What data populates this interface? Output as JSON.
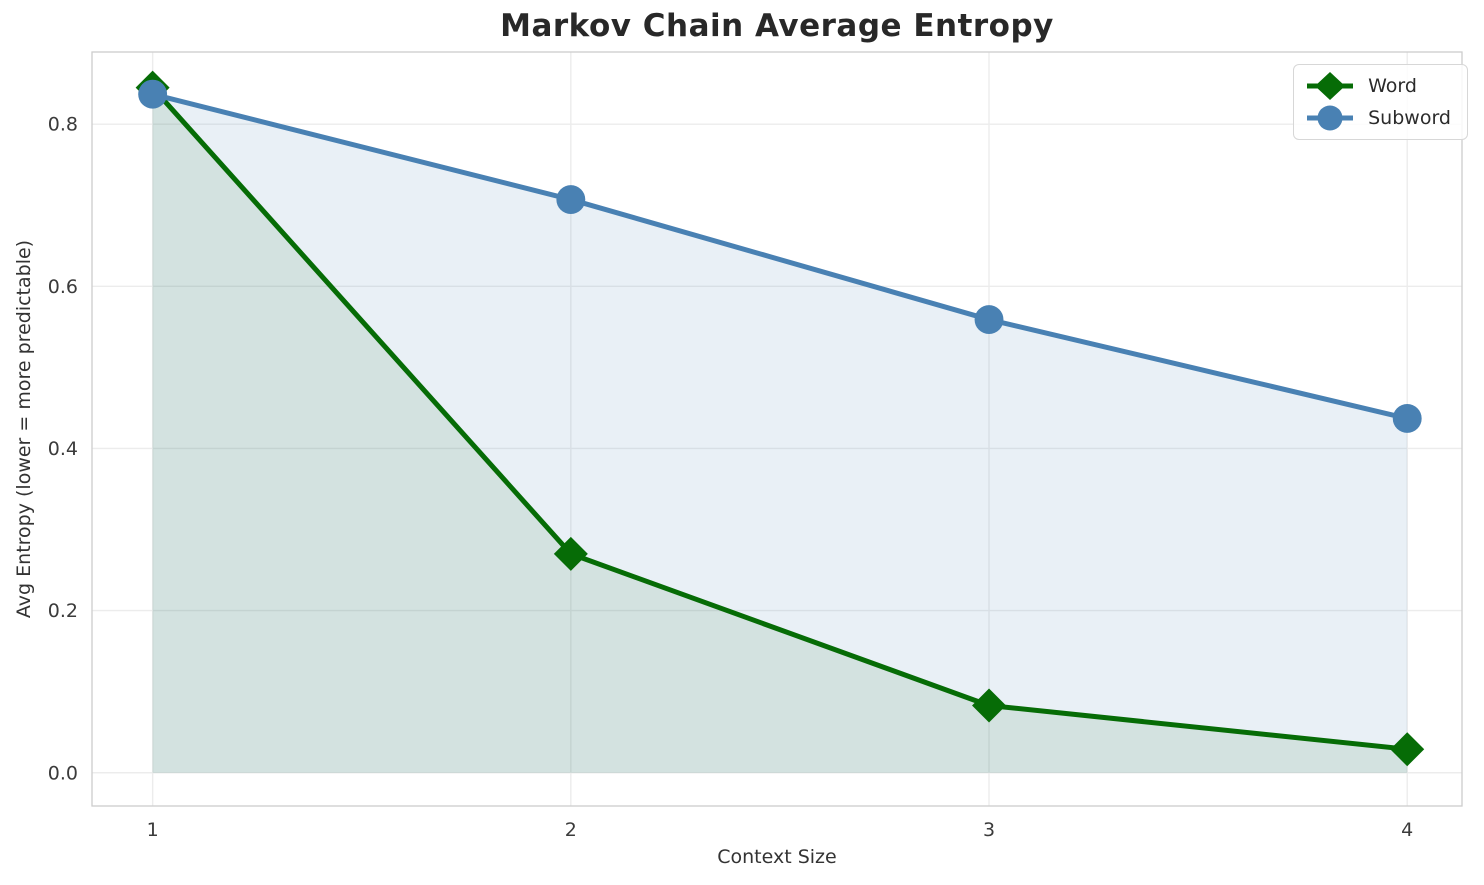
{
  "chart_data": {
    "type": "line",
    "title": "Markov Chain Average Entropy",
    "xlabel": "Context Size",
    "ylabel": "Avg Entropy (lower = more predictable)",
    "x": [
      1,
      2,
      3,
      4
    ],
    "series": [
      {
        "name": "Word",
        "values": [
          0.845,
          0.27,
          0.083,
          0.029
        ],
        "color": "#066c06",
        "marker": "diamond",
        "fill_alpha": 0.1
      },
      {
        "name": "Subword",
        "values": [
          0.837,
          0.707,
          0.559,
          0.437
        ],
        "color": "#4981b3",
        "marker": "circle",
        "fill_alpha": 0.12
      }
    ],
    "xlim": [
      0.855,
      4.131
    ],
    "ylim": [
      -0.041,
      0.889
    ],
    "xticks": {
      "values": [
        1,
        2,
        3,
        4
      ],
      "labels": [
        "1",
        "2",
        "3",
        "4"
      ]
    },
    "yticks": {
      "values": [
        0.0,
        0.2,
        0.4,
        0.6,
        0.8
      ],
      "labels": [
        "0.0",
        "0.2",
        "0.4",
        "0.6",
        "0.8"
      ]
    },
    "grid": true,
    "area_fill": true,
    "fill_baseline": 0,
    "legend_position": "upper right"
  },
  "style_colors": {
    "grid": "#ececec",
    "spine": "#cdcdcd",
    "tick_label": "#3b3b3b",
    "title": "#282828",
    "background": "#ffffff"
  }
}
